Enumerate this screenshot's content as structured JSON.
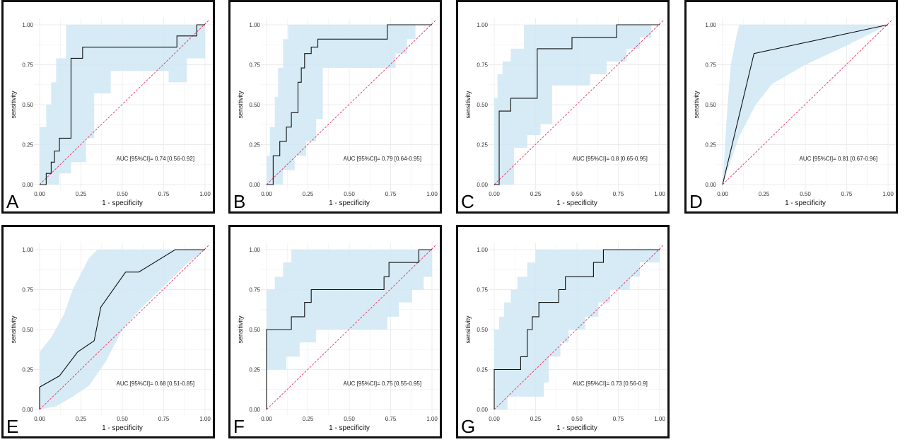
{
  "chart_data": [
    {
      "panel": "A",
      "type": "line",
      "xlabel": "1 - specificity",
      "ylabel": "sensitivity",
      "xlim": [
        0,
        1
      ],
      "ylim": [
        0,
        1
      ],
      "x_ticks": [
        "0.00",
        "0.25",
        "0.50",
        "0.75",
        "1.00"
      ],
      "y_ticks": [
        "0.00",
        "0.25",
        "0.50",
        "0.75",
        "1.00"
      ],
      "annotation": "AUC [95%CI]= 0.74 [0.56-0.92]",
      "roc": [
        [
          0,
          0
        ],
        [
          0.04,
          0
        ],
        [
          0.04,
          0.07
        ],
        [
          0.07,
          0.07
        ],
        [
          0.07,
          0.14
        ],
        [
          0.09,
          0.14
        ],
        [
          0.09,
          0.21
        ],
        [
          0.12,
          0.21
        ],
        [
          0.12,
          0.29
        ],
        [
          0.19,
          0.29
        ],
        [
          0.19,
          0.79
        ],
        [
          0.26,
          0.79
        ],
        [
          0.26,
          0.86
        ],
        [
          0.83,
          0.86
        ],
        [
          0.83,
          0.93
        ],
        [
          0.95,
          0.93
        ],
        [
          0.95,
          1
        ],
        [
          1,
          1
        ]
      ],
      "ci_upper": [
        [
          0,
          0.36
        ],
        [
          0.04,
          0.36
        ],
        [
          0.04,
          0.5
        ],
        [
          0.07,
          0.5
        ],
        [
          0.07,
          0.64
        ],
        [
          0.1,
          0.64
        ],
        [
          0.1,
          0.79
        ],
        [
          0.16,
          0.79
        ],
        [
          0.16,
          1
        ],
        [
          1,
          1
        ]
      ],
      "ci_lower": [
        [
          0,
          0
        ],
        [
          0.12,
          0
        ],
        [
          0.12,
          0.07
        ],
        [
          0.19,
          0.07
        ],
        [
          0.19,
          0.14
        ],
        [
          0.28,
          0.14
        ],
        [
          0.28,
          0.29
        ],
        [
          0.33,
          0.29
        ],
        [
          0.33,
          0.57
        ],
        [
          0.43,
          0.57
        ],
        [
          0.43,
          0.71
        ],
        [
          0.78,
          0.71
        ],
        [
          0.78,
          0.64
        ],
        [
          0.89,
          0.64
        ],
        [
          0.89,
          0.79
        ],
        [
          1,
          0.79
        ]
      ],
      "label": "A"
    },
    {
      "panel": "B",
      "type": "line",
      "xlabel": "1 - specificity",
      "ylabel": "sensitivity",
      "xlim": [
        0,
        1
      ],
      "ylim": [
        0,
        1
      ],
      "x_ticks": [
        "0.00",
        "0.25",
        "0.50",
        "0.75",
        "1.00"
      ],
      "y_ticks": [
        "0.00",
        "0.25",
        "0.50",
        "0.75",
        "1.00"
      ],
      "annotation": "AUC [95%CI]= 0.79 [0.64-0.95]",
      "roc": [
        [
          0,
          0
        ],
        [
          0.04,
          0
        ],
        [
          0.04,
          0.09
        ],
        [
          0.04,
          0.18
        ],
        [
          0.08,
          0.18
        ],
        [
          0.08,
          0.27
        ],
        [
          0.12,
          0.27
        ],
        [
          0.12,
          0.36
        ],
        [
          0.15,
          0.36
        ],
        [
          0.15,
          0.45
        ],
        [
          0.19,
          0.45
        ],
        [
          0.19,
          0.64
        ],
        [
          0.21,
          0.64
        ],
        [
          0.21,
          0.73
        ],
        [
          0.23,
          0.73
        ],
        [
          0.23,
          0.82
        ],
        [
          0.27,
          0.82
        ],
        [
          0.27,
          0.86
        ],
        [
          0.31,
          0.86
        ],
        [
          0.31,
          0.91
        ],
        [
          0.73,
          0.91
        ],
        [
          0.73,
          1
        ],
        [
          1,
          1
        ]
      ],
      "ci_upper": [
        [
          0,
          0.18
        ],
        [
          0.02,
          0.18
        ],
        [
          0.02,
          0.36
        ],
        [
          0.05,
          0.36
        ],
        [
          0.05,
          0.55
        ],
        [
          0.07,
          0.55
        ],
        [
          0.07,
          0.73
        ],
        [
          0.1,
          0.73
        ],
        [
          0.1,
          0.91
        ],
        [
          0.13,
          0.91
        ],
        [
          0.13,
          1
        ],
        [
          1,
          1
        ]
      ],
      "ci_lower": [
        [
          0,
          0
        ],
        [
          0.1,
          0
        ],
        [
          0.1,
          0.09
        ],
        [
          0.17,
          0.09
        ],
        [
          0.17,
          0.18
        ],
        [
          0.24,
          0.18
        ],
        [
          0.24,
          0.27
        ],
        [
          0.3,
          0.27
        ],
        [
          0.3,
          0.41
        ],
        [
          0.34,
          0.41
        ],
        [
          0.34,
          0.73
        ],
        [
          0.78,
          0.73
        ],
        [
          0.78,
          0.82
        ],
        [
          0.85,
          0.82
        ],
        [
          0.85,
          0.91
        ],
        [
          0.9,
          0.91
        ],
        [
          0.9,
          1
        ],
        [
          1,
          1
        ]
      ],
      "label": "B"
    },
    {
      "panel": "C",
      "type": "line",
      "xlabel": "1 - specificity",
      "ylabel": "sensitivity",
      "xlim": [
        0,
        1
      ],
      "ylim": [
        0,
        1
      ],
      "x_ticks": [
        "0.00",
        "0.25",
        "0.50",
        "0.75",
        "1.00"
      ],
      "y_ticks": [
        "0.00",
        "0.25",
        "0.50",
        "0.75",
        "1.00"
      ],
      "annotation": "AUC [95%CI]= 0.8 [0.65-0.95]",
      "roc": [
        [
          0,
          0
        ],
        [
          0.03,
          0
        ],
        [
          0.03,
          0.46
        ],
        [
          0.1,
          0.46
        ],
        [
          0.1,
          0.54
        ],
        [
          0.26,
          0.54
        ],
        [
          0.26,
          0.85
        ],
        [
          0.47,
          0.85
        ],
        [
          0.47,
          0.92
        ],
        [
          0.74,
          0.92
        ],
        [
          0.74,
          1
        ],
        [
          1,
          1
        ]
      ],
      "ci_upper": [
        [
          0,
          0.54
        ],
        [
          0.02,
          0.54
        ],
        [
          0.02,
          0.69
        ],
        [
          0.05,
          0.69
        ],
        [
          0.05,
          0.77
        ],
        [
          0.1,
          0.77
        ],
        [
          0.1,
          0.85
        ],
        [
          0.18,
          0.85
        ],
        [
          0.18,
          1
        ],
        [
          1,
          1
        ]
      ],
      "ci_lower": [
        [
          0,
          0
        ],
        [
          0.12,
          0
        ],
        [
          0.12,
          0.23
        ],
        [
          0.2,
          0.23
        ],
        [
          0.2,
          0.31
        ],
        [
          0.28,
          0.31
        ],
        [
          0.28,
          0.38
        ],
        [
          0.35,
          0.38
        ],
        [
          0.35,
          0.62
        ],
        [
          0.58,
          0.62
        ],
        [
          0.58,
          0.69
        ],
        [
          0.68,
          0.69
        ],
        [
          0.68,
          0.77
        ],
        [
          0.8,
          0.77
        ],
        [
          0.8,
          0.85
        ],
        [
          0.88,
          0.85
        ],
        [
          0.88,
          0.92
        ],
        [
          0.95,
          0.92
        ],
        [
          0.95,
          1
        ],
        [
          1,
          1
        ]
      ],
      "label": "C"
    },
    {
      "panel": "D",
      "type": "line",
      "xlabel": "1 - specificity",
      "ylabel": "sensitivity",
      "xlim": [
        0,
        1
      ],
      "ylim": [
        0,
        1
      ],
      "x_ticks": [
        "0.00",
        "0.25",
        "0.50",
        "0.75",
        "1.00"
      ],
      "y_ticks": [
        "0.00",
        "0.25",
        "0.50",
        "0.75",
        "1.00"
      ],
      "annotation": "AUC [95%CI]= 0.81 [0.67-0.96]",
      "roc": [
        [
          0,
          0
        ],
        [
          0.19,
          0.82
        ],
        [
          1,
          1
        ]
      ],
      "ci_upper": [
        [
          0,
          0
        ],
        [
          0.03,
          0.5
        ],
        [
          0.05,
          0.75
        ],
        [
          0.08,
          0.91
        ],
        [
          0.1,
          1
        ],
        [
          1,
          1
        ]
      ],
      "ci_lower": [
        [
          0,
          0
        ],
        [
          0.1,
          0.3
        ],
        [
          0.2,
          0.5
        ],
        [
          0.3,
          0.63
        ],
        [
          0.5,
          0.75
        ],
        [
          0.75,
          0.87
        ],
        [
          1,
          1
        ]
      ],
      "label": "D"
    },
    {
      "panel": "E",
      "type": "line",
      "xlabel": "1 - specificity",
      "ylabel": "sensitivity",
      "xlim": [
        0,
        1
      ],
      "ylim": [
        0,
        1
      ],
      "x_ticks": [
        "0.00",
        "0.25",
        "0.50",
        "0.75",
        "1.00"
      ],
      "y_ticks": [
        "0.00",
        "0.25",
        "0.50",
        "0.75",
        "1.00"
      ],
      "annotation": "AUC [95%CI]= 0.68 [0.51-0.85]",
      "roc": [
        [
          0,
          0
        ],
        [
          0,
          0.14
        ],
        [
          0.12,
          0.21
        ],
        [
          0.23,
          0.36
        ],
        [
          0.33,
          0.43
        ],
        [
          0.37,
          0.64
        ],
        [
          0.52,
          0.86
        ],
        [
          0.6,
          0.86
        ],
        [
          0.82,
          1
        ],
        [
          1,
          1
        ]
      ],
      "ci_upper": [
        [
          0,
          0.36
        ],
        [
          0.07,
          0.45
        ],
        [
          0.15,
          0.6
        ],
        [
          0.2,
          0.75
        ],
        [
          0.3,
          0.95
        ],
        [
          0.35,
          1
        ],
        [
          1,
          1
        ]
      ],
      "ci_lower": [
        [
          0,
          0
        ],
        [
          0.1,
          0.02
        ],
        [
          0.2,
          0.08
        ],
        [
          0.3,
          0.15
        ],
        [
          0.4,
          0.3
        ],
        [
          0.5,
          0.5
        ],
        [
          0.6,
          0.62
        ],
        [
          0.7,
          0.72
        ],
        [
          0.8,
          0.82
        ],
        [
          0.9,
          0.92
        ],
        [
          1,
          1
        ]
      ],
      "label": "E"
    },
    {
      "panel": "F",
      "type": "line",
      "xlabel": "1 - specificity",
      "ylabel": "sensitivity",
      "xlim": [
        0,
        1
      ],
      "ylim": [
        0,
        1
      ],
      "x_ticks": [
        "0.00",
        "0.25",
        "0.50",
        "0.75",
        "1.00"
      ],
      "y_ticks": [
        "0.00",
        "0.25",
        "0.50",
        "0.75",
        "1.00"
      ],
      "annotation": "AUC [95%CI]= 0.75 [0.55-0.95]",
      "roc": [
        [
          0,
          0
        ],
        [
          0,
          0.5
        ],
        [
          0.15,
          0.5
        ],
        [
          0.15,
          0.58
        ],
        [
          0.23,
          0.58
        ],
        [
          0.23,
          0.67
        ],
        [
          0.27,
          0.67
        ],
        [
          0.27,
          0.75
        ],
        [
          0.71,
          0.75
        ],
        [
          0.71,
          0.83
        ],
        [
          0.74,
          0.83
        ],
        [
          0.74,
          0.92
        ],
        [
          0.92,
          0.92
        ],
        [
          0.92,
          1
        ],
        [
          1,
          1
        ]
      ],
      "ci_upper": [
        [
          0,
          0.75
        ],
        [
          0.05,
          0.75
        ],
        [
          0.05,
          0.83
        ],
        [
          0.1,
          0.83
        ],
        [
          0.1,
          0.92
        ],
        [
          0.15,
          0.92
        ],
        [
          0.15,
          1
        ],
        [
          1,
          1
        ]
      ],
      "ci_lower": [
        [
          0,
          0.25
        ],
        [
          0.12,
          0.25
        ],
        [
          0.12,
          0.33
        ],
        [
          0.2,
          0.33
        ],
        [
          0.2,
          0.42
        ],
        [
          0.3,
          0.42
        ],
        [
          0.3,
          0.5
        ],
        [
          0.73,
          0.5
        ],
        [
          0.73,
          0.58
        ],
        [
          0.8,
          0.58
        ],
        [
          0.8,
          0.67
        ],
        [
          0.88,
          0.67
        ],
        [
          0.88,
          0.75
        ],
        [
          0.95,
          0.75
        ],
        [
          0.95,
          0.83
        ],
        [
          1,
          0.83
        ]
      ],
      "label": "F"
    },
    {
      "panel": "G",
      "type": "line",
      "xlabel": "1 - specificity",
      "ylabel": "sensitivity",
      "xlim": [
        0,
        1
      ],
      "ylim": [
        0,
        1
      ],
      "x_ticks": [
        "0.00",
        "0.25",
        "0.50",
        "0.75",
        "1.00"
      ],
      "y_ticks": [
        "0.00",
        "0.25",
        "0.50",
        "0.75",
        "1.00"
      ],
      "annotation": "AUC [95%CI]= 0.73 [0.56-0.9]",
      "roc": [
        [
          0,
          0
        ],
        [
          0,
          0.25
        ],
        [
          0.16,
          0.25
        ],
        [
          0.16,
          0.33
        ],
        [
          0.2,
          0.33
        ],
        [
          0.2,
          0.5
        ],
        [
          0.23,
          0.5
        ],
        [
          0.23,
          0.58
        ],
        [
          0.27,
          0.58
        ],
        [
          0.27,
          0.67
        ],
        [
          0.39,
          0.67
        ],
        [
          0.39,
          0.75
        ],
        [
          0.43,
          0.75
        ],
        [
          0.43,
          0.83
        ],
        [
          0.6,
          0.83
        ],
        [
          0.6,
          0.92
        ],
        [
          0.66,
          0.92
        ],
        [
          0.66,
          1
        ],
        [
          1,
          1
        ]
      ],
      "ci_upper": [
        [
          0,
          0.5
        ],
        [
          0.03,
          0.5
        ],
        [
          0.03,
          0.58
        ],
        [
          0.06,
          0.58
        ],
        [
          0.06,
          0.67
        ],
        [
          0.1,
          0.67
        ],
        [
          0.1,
          0.75
        ],
        [
          0.14,
          0.75
        ],
        [
          0.14,
          0.83
        ],
        [
          0.2,
          0.83
        ],
        [
          0.2,
          0.92
        ],
        [
          0.25,
          0.92
        ],
        [
          0.25,
          1
        ],
        [
          1,
          1
        ]
      ],
      "ci_lower": [
        [
          0,
          0
        ],
        [
          0.08,
          0
        ],
        [
          0.08,
          0.08
        ],
        [
          0.3,
          0.08
        ],
        [
          0.3,
          0.17
        ],
        [
          0.33,
          0.17
        ],
        [
          0.33,
          0.33
        ],
        [
          0.4,
          0.33
        ],
        [
          0.4,
          0.42
        ],
        [
          0.45,
          0.42
        ],
        [
          0.45,
          0.5
        ],
        [
          0.55,
          0.5
        ],
        [
          0.55,
          0.58
        ],
        [
          0.63,
          0.58
        ],
        [
          0.63,
          0.67
        ],
        [
          0.7,
          0.67
        ],
        [
          0.7,
          0.75
        ],
        [
          0.82,
          0.75
        ],
        [
          0.82,
          0.83
        ],
        [
          0.88,
          0.83
        ],
        [
          0.88,
          0.92
        ],
        [
          1,
          0.92
        ]
      ],
      "label": "G"
    }
  ]
}
